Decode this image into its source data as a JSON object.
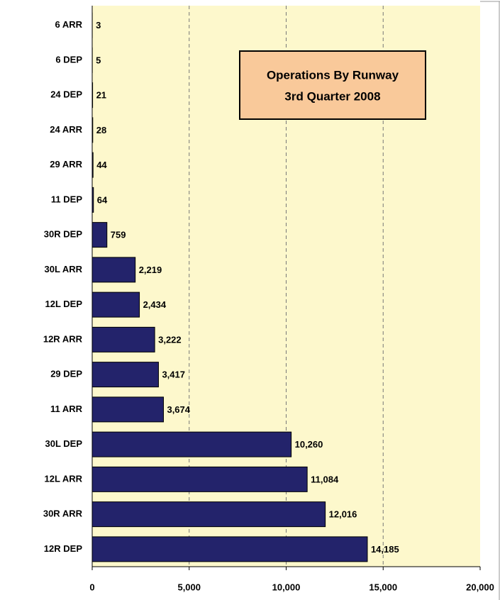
{
  "chart_data": {
    "type": "bar",
    "orientation": "horizontal",
    "title": "Operations By Runway",
    "subtitle": "3rd Quarter 2008",
    "categories": [
      "6 ARR",
      "6 DEP",
      "24 DEP",
      "24 ARR",
      "29 ARR",
      "11 DEP",
      "30R DEP",
      "30L ARR",
      "12L DEP",
      "12R ARR",
      "29 DEP",
      "11 ARR",
      "30L DEP",
      "12L ARR",
      "30R ARR",
      "12R DEP"
    ],
    "values": [
      3,
      5,
      21,
      28,
      44,
      64,
      759,
      2219,
      2434,
      3222,
      3417,
      3674,
      10260,
      11084,
      12016,
      14185
    ],
    "value_labels": [
      "3",
      "5",
      "21",
      "28",
      "44",
      "64",
      "759",
      "2,219",
      "2,434",
      "3,222",
      "3,417",
      "3,674",
      "10,260",
      "11,084",
      "12,016",
      "14,185"
    ],
    "color": "#23236b",
    "xlim": [
      0,
      20000
    ],
    "xticks": [
      0,
      {
        "value": 5000,
        "label": "5,000"
      },
      {
        "value": 10000,
        "label": "10,000"
      },
      {
        "value": 15000,
        "label": "15,000"
      },
      {
        "value": 20000,
        "label": "20,000"
      }
    ],
    "grid": true
  }
}
